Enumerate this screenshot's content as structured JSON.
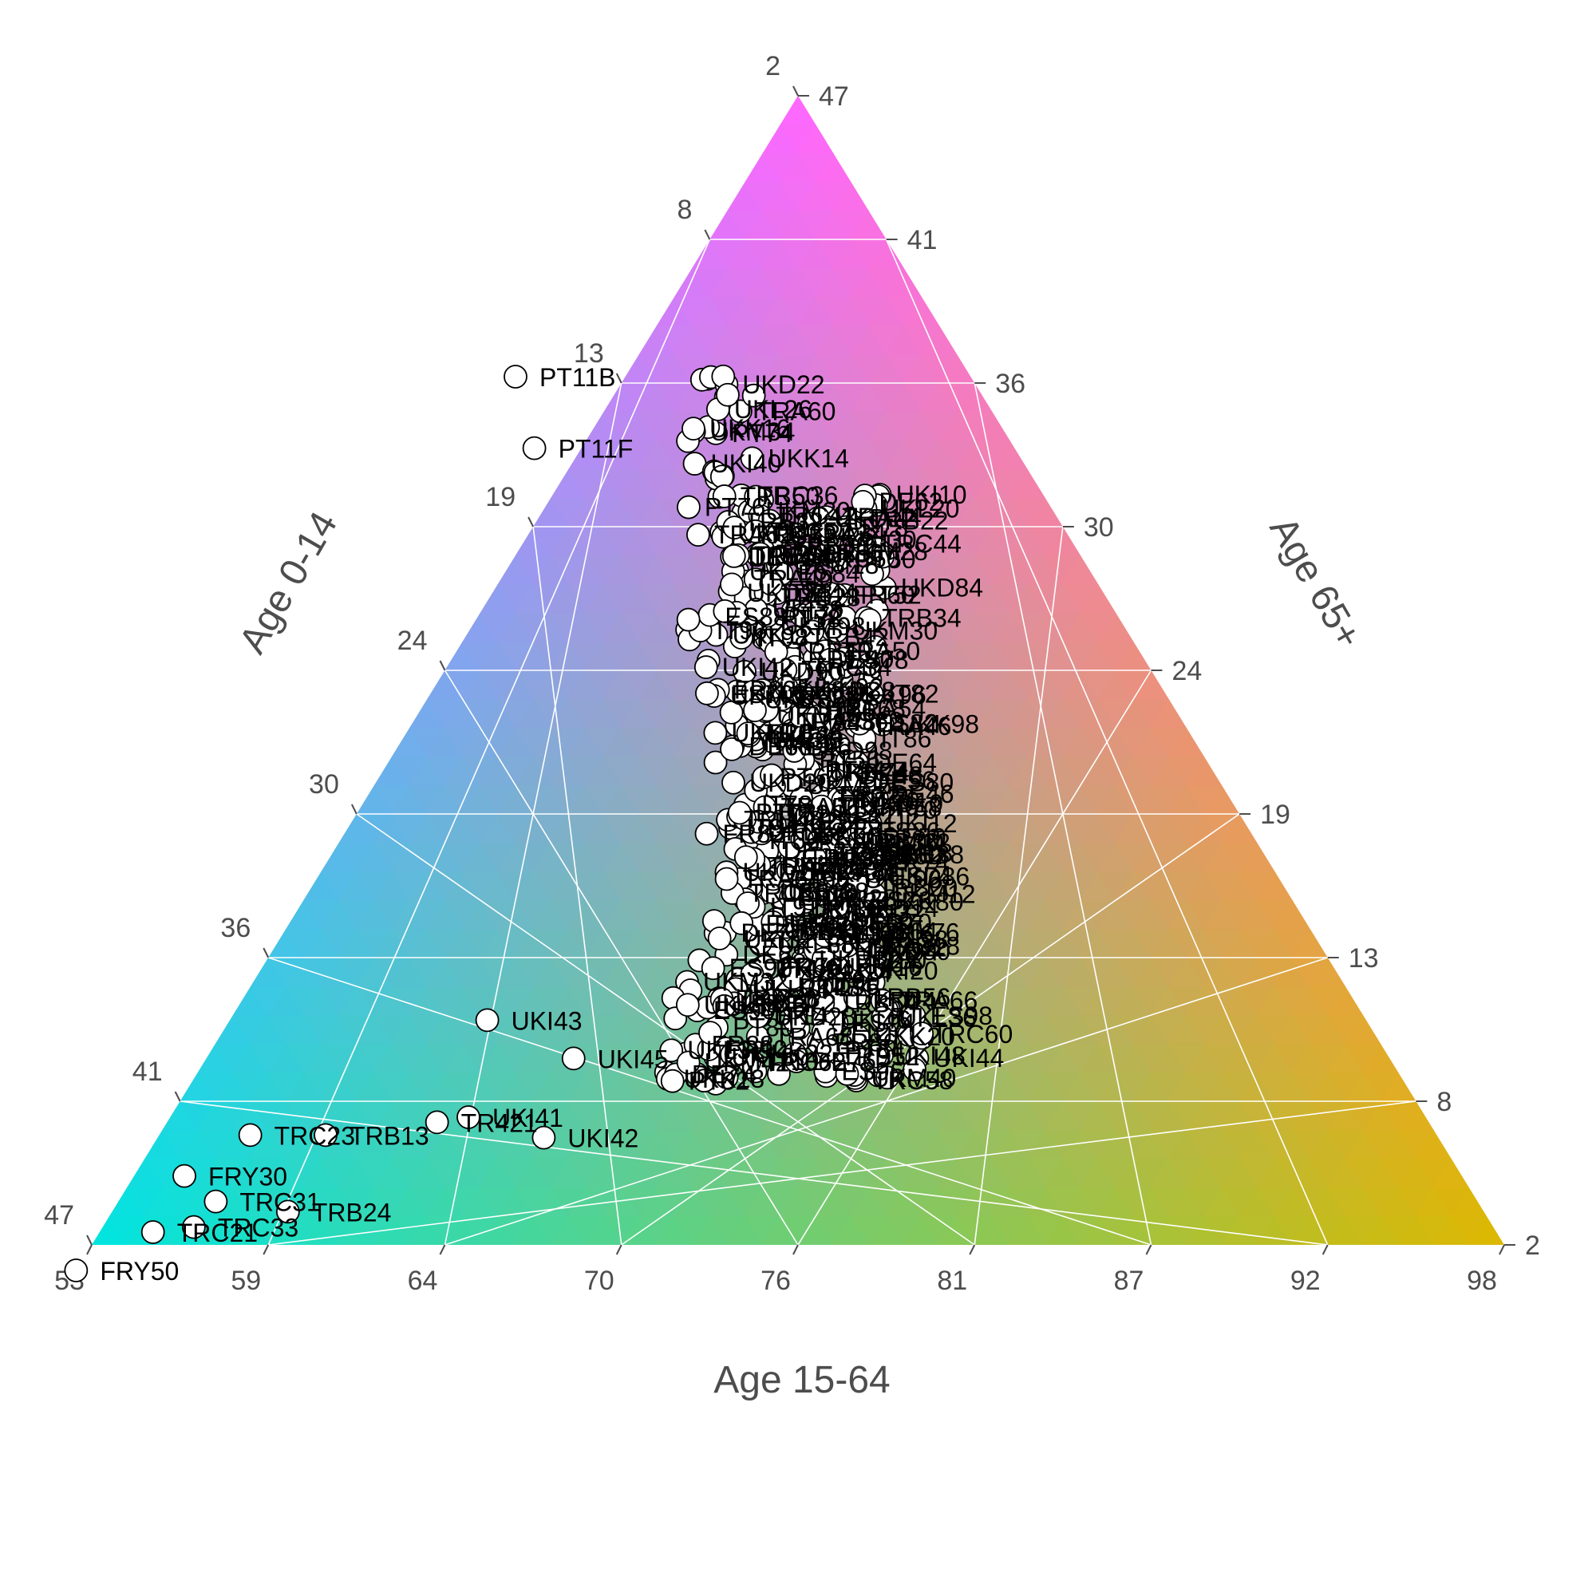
{
  "chart_data": {
    "type": "scatter",
    "subtype": "ternary",
    "axes": {
      "bottom": {
        "title": "Age 15-64",
        "ticks": [
          "53",
          "59",
          "64",
          "70",
          "76",
          "81",
          "87",
          "92",
          "98"
        ],
        "range": [
          53,
          98
        ]
      },
      "left": {
        "title": "Age 0-14",
        "ticks": [
          "2",
          "8",
          "13",
          "19",
          "24",
          "30",
          "36",
          "41",
          "47"
        ],
        "range": [
          2,
          47
        ]
      },
      "right": {
        "title": "Age 65+",
        "ticks": [
          "47",
          "41",
          "36",
          "30",
          "24",
          "19",
          "13",
          "8",
          "2"
        ],
        "range": [
          2,
          47
        ]
      }
    },
    "grid": true,
    "background": "gradient",
    "colors": {
      "top": "#ff66ff",
      "left": "#00e5e0",
      "right": "#ddb800",
      "text": "#4d4d4d",
      "point_fill": "#ffffff",
      "point_stroke": "#000000"
    },
    "labeled_points": [
      {
        "label": "FRY50",
        "a014": 46.0,
        "a1564": 53.0,
        "a65": 1.0
      },
      {
        "label": "TRC21",
        "a014": 42.8,
        "a1564": 54.7,
        "a65": 2.5
      },
      {
        "label": "TRC33",
        "a014": 41.4,
        "a1564": 55.9,
        "a65": 2.7
      },
      {
        "label": "TRB24",
        "a014": 38.1,
        "a1564": 58.6,
        "a65": 3.3
      },
      {
        "label": "FRY30",
        "a014": 40.7,
        "a1564": 54.6,
        "a65": 4.7
      },
      {
        "label": "TRC23",
        "a014": 37.8,
        "a1564": 55.9,
        "a65": 6.3
      },
      {
        "label": "TRB13",
        "a014": 35.4,
        "a1564": 58.3,
        "a65": 6.3
      },
      {
        "label": "TR421",
        "a014": 31.6,
        "a1564": 61.6,
        "a65": 6.8
      },
      {
        "label": "UKI41",
        "a014": 30.5,
        "a1564": 62.5,
        "a65": 7.0
      },
      {
        "label": "UKI42",
        "a014": 28.5,
        "a1564": 65.3,
        "a65": 6.2
      },
      {
        "label": "UKI45",
        "a014": 26.0,
        "a1564": 64.7,
        "a65": 9.3
      },
      {
        "label": "UKI43",
        "a014": 28.0,
        "a1564": 61.2,
        "a65": 10.8
      },
      {
        "label": "TRC31",
        "a014": 40.2,
        "a1564": 56.1,
        "a65": 3.7
      },
      {
        "label": "ES704",
        "a014": 18.0,
        "a1564": 67.4,
        "a65": 14.6
      },
      {
        "label": "PT11B",
        "a014": 14.5,
        "a1564": 49.5,
        "a65": 36.0
      },
      {
        "label": "PT11F",
        "a014": 15.3,
        "a1564": 51.5,
        "a65": 33.2
      },
      {
        "label": "UKI31",
        "a014": 19.0,
        "a1564": 67.0,
        "a65": 14.0
      },
      {
        "label": "ES706",
        "a014": 14.6,
        "a1564": 61.8,
        "a65": 23.6
      }
    ],
    "point_label_prefixes": [
      "UKI",
      "TRB",
      "TRC",
      "TRA",
      "DE",
      "PT",
      "FR",
      "ES",
      "IT",
      "UKK",
      "UKD",
      "UKL",
      "UKM"
    ]
  }
}
